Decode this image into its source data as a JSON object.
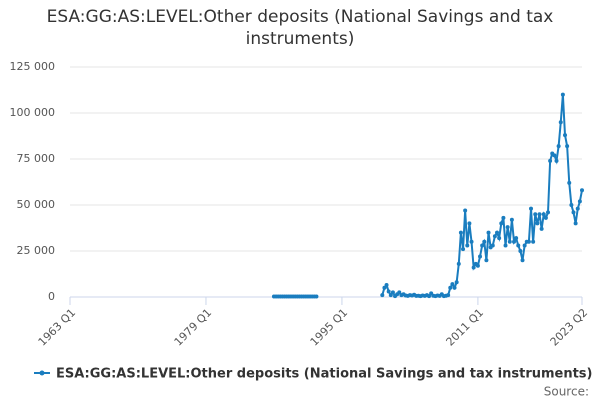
{
  "chart_data": {
    "type": "line",
    "title": "ESA:GG:AS:LEVEL:Other deposits (National Savings and tax instruments)",
    "source": "Source:",
    "categories": [
      "1963 Q1",
      null,
      null,
      null,
      null,
      null,
      null,
      null,
      null,
      null,
      null,
      null,
      null,
      null,
      null,
      null,
      null,
      null,
      null,
      null,
      null,
      null,
      null,
      null,
      null,
      null,
      null,
      null,
      null,
      null,
      null,
      null,
      null,
      null,
      null,
      null,
      null,
      null,
      null,
      null,
      null,
      null,
      null,
      null,
      null,
      null,
      null,
      null,
      null,
      null,
      null,
      null,
      null,
      null,
      null,
      null,
      null,
      null,
      null,
      null,
      null,
      null,
      null,
      null,
      "1979 Q1",
      null,
      null,
      null,
      null,
      null,
      null,
      null,
      null,
      null,
      null,
      null,
      null,
      null,
      null,
      null,
      null,
      null,
      null,
      null,
      null,
      null,
      null,
      null,
      null,
      null,
      null,
      null,
      null,
      null,
      null,
      null,
      null,
      null,
      null,
      null,
      null,
      null,
      null,
      null,
      null,
      null,
      null,
      null,
      null,
      null,
      null,
      null,
      null,
      null,
      null,
      null,
      null,
      null,
      null,
      null,
      null,
      null,
      null,
      null,
      null,
      null,
      null,
      null,
      "1995 Q1",
      null,
      null,
      null,
      null,
      null,
      null,
      null,
      null,
      null,
      null,
      null,
      null,
      null,
      null,
      null,
      null,
      null,
      null,
      null,
      null,
      null,
      null,
      null,
      null,
      null,
      null,
      null,
      null,
      null,
      null,
      null,
      null,
      null,
      null,
      null,
      null,
      null,
      null,
      null,
      null,
      null,
      null,
      null,
      null,
      null,
      null,
      null,
      null,
      null,
      null,
      null,
      null,
      null,
      null,
      null,
      null,
      null,
      null,
      null,
      null,
      null,
      null,
      null,
      "2011 Q1",
      null,
      null,
      null,
      null,
      null,
      null,
      null,
      null,
      null,
      null,
      null,
      null,
      null,
      null,
      null,
      null,
      null,
      null,
      null,
      null,
      null,
      null,
      null,
      null,
      null,
      null,
      null,
      null,
      null,
      null,
      null,
      null,
      null,
      null,
      null,
      null,
      null,
      null,
      null,
      null,
      null,
      null,
      null,
      null,
      null,
      null,
      null,
      null,
      "2023 Q2"
    ],
    "series": [
      {
        "name": "ESA:GG:AS:LEVEL:Other deposits (National Savings and tax instruments)",
        "color": "#1a7dbf",
        "values": [
          null,
          null,
          null,
          null,
          null,
          null,
          null,
          null,
          null,
          null,
          null,
          null,
          null,
          null,
          null,
          null,
          null,
          null,
          null,
          null,
          null,
          null,
          null,
          null,
          null,
          null,
          null,
          null,
          null,
          null,
          null,
          null,
          null,
          null,
          null,
          null,
          null,
          null,
          null,
          null,
          null,
          null,
          null,
          null,
          null,
          null,
          null,
          null,
          null,
          null,
          null,
          null,
          null,
          null,
          null,
          null,
          null,
          null,
          null,
          null,
          null,
          null,
          null,
          null,
          null,
          null,
          null,
          null,
          null,
          null,
          null,
          null,
          null,
          null,
          null,
          null,
          null,
          null,
          null,
          null,
          null,
          null,
          null,
          null,
          null,
          null,
          null,
          null,
          null,
          null,
          null,
          null,
          null,
          null,
          null,
          null,
          300,
          300,
          300,
          300,
          300,
          300,
          300,
          300,
          300,
          300,
          300,
          300,
          300,
          300,
          300,
          300,
          300,
          300,
          300,
          300,
          300,
          null,
          null,
          null,
          null,
          null,
          null,
          null,
          null,
          null,
          null,
          null,
          null,
          null,
          null,
          null,
          null,
          null,
          null,
          null,
          null,
          null,
          null,
          null,
          null,
          null,
          null,
          null,
          null,
          null,
          null,
          1000,
          5000,
          6500,
          3000,
          1000,
          2500,
          500,
          1500,
          2500,
          1000,
          1500,
          800,
          600,
          1000,
          800,
          1200,
          600,
          700,
          500,
          800,
          600,
          1000,
          500,
          2000,
          700,
          500,
          800,
          600,
          1500,
          500,
          700,
          1000,
          5000,
          7000,
          5000,
          8000,
          18000,
          35000,
          26000,
          47000,
          28000,
          40000,
          30000,
          16000,
          18000,
          17000,
          22000,
          28000,
          30000,
          20000,
          35000,
          27000,
          28000,
          33000,
          35000,
          32000,
          40000,
          43000,
          28000,
          38000,
          30000,
          42000,
          30000,
          32000,
          28000,
          25000,
          20000,
          28000,
          30000,
          30000,
          48000,
          30000,
          45000,
          40000,
          45000,
          37000,
          45000,
          43000,
          46000,
          74000,
          78000,
          77000,
          74000,
          82000,
          95000,
          110000,
          88000,
          82000,
          62000,
          50000,
          46000,
          40000,
          48000,
          52000,
          58000
        ]
      }
    ],
    "ylim": [
      0,
      125000
    ],
    "yticks": [
      0,
      {
        "value": 25000,
        "label": "25 000"
      },
      {
        "value": 50000,
        "label": "50 000"
      },
      {
        "value": 75000,
        "label": "75 000"
      },
      {
        "value": 100000,
        "label": "100 000"
      },
      {
        "value": 125000,
        "label": "125 000"
      }
    ],
    "grid": true,
    "legend": "bottom"
  }
}
